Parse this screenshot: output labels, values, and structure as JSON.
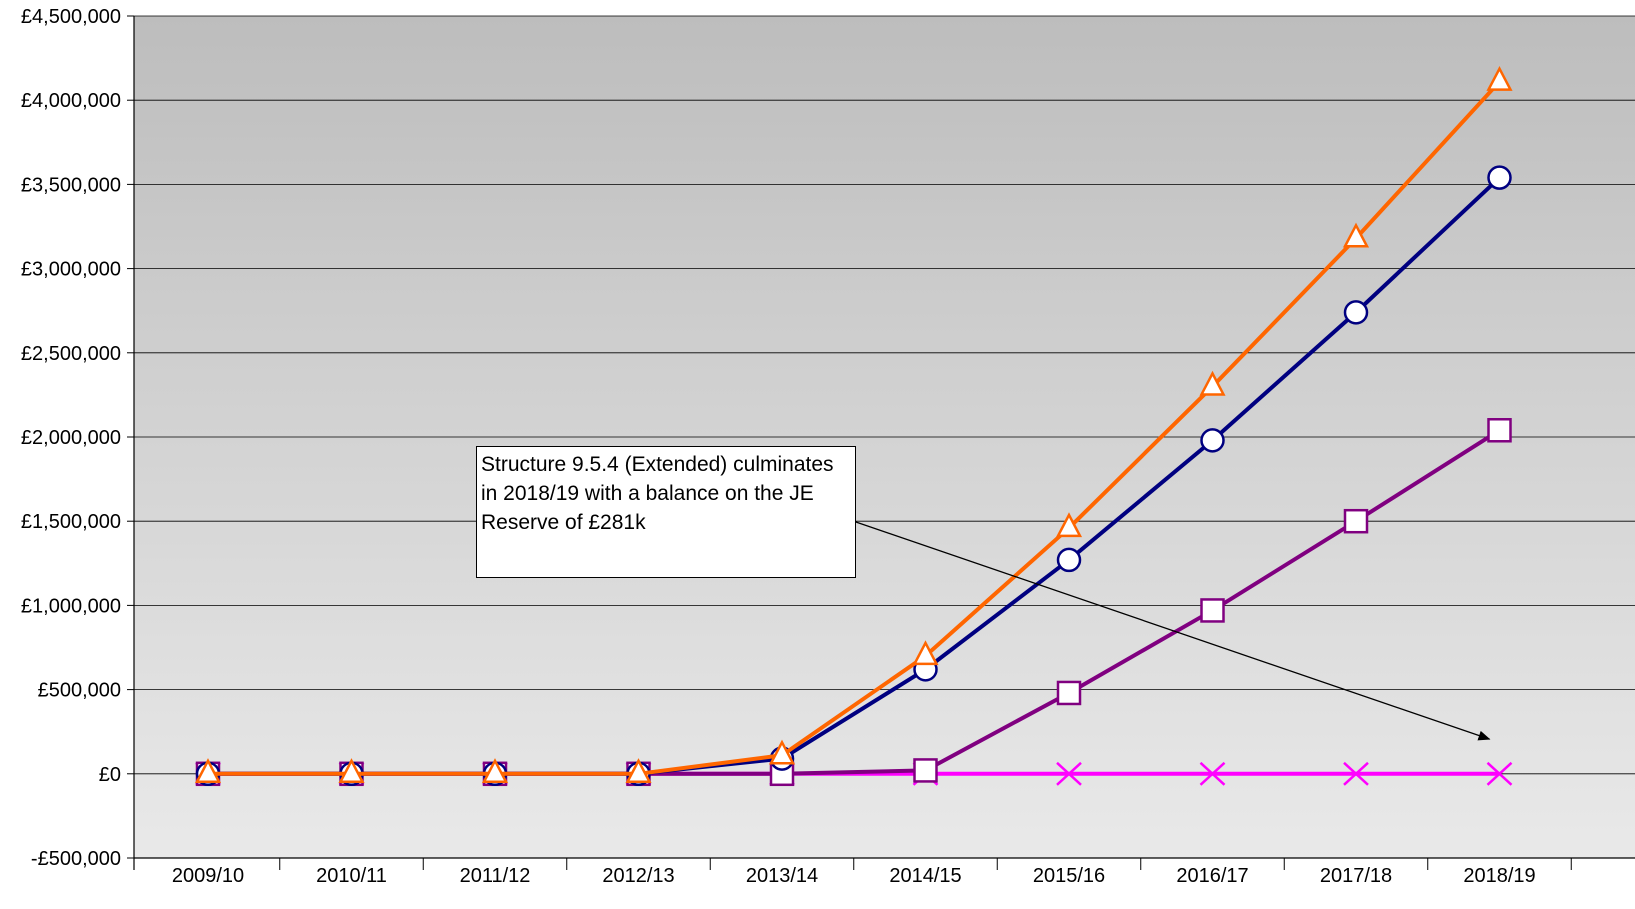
{
  "chart_data": {
    "type": "line",
    "categories": [
      "2009/10",
      "2010/11",
      "2011/12",
      "2012/13",
      "2013/14",
      "2014/15",
      "2015/16",
      "2016/17",
      "2017/18",
      "2018/19"
    ],
    "ylim": [
      -500000,
      4500000
    ],
    "yticks": [
      -500000,
      0,
      500000,
      1000000,
      1500000,
      2000000,
      2500000,
      3000000,
      3500000,
      4000000,
      4500000
    ],
    "ytick_labels": [
      "-£500,000",
      "£0",
      "£500,000",
      "£1,000,000",
      "£1,500,000",
      "£2,000,000",
      "£2,500,000",
      "£3,000,000",
      "£3,500,000",
      "£4,000,000",
      "£4,500,000"
    ],
    "grid": true,
    "legend": "none",
    "series": [
      {
        "marker": "x",
        "color": "#ff00ff",
        "values": [
          0,
          0,
          0,
          0,
          0,
          0,
          0,
          0,
          0,
          0
        ]
      },
      {
        "marker": "square",
        "color": "#800080",
        "values": [
          0,
          0,
          0,
          0,
          0,
          20000,
          480000,
          970000,
          1500000,
          2040000
        ]
      },
      {
        "marker": "circle",
        "color": "#000080",
        "values": [
          0,
          0,
          0,
          0,
          90000,
          620000,
          1270000,
          1980000,
          2740000,
          3540000
        ]
      },
      {
        "marker": "triangle",
        "color": "#ff6600",
        "values": [
          0,
          0,
          0,
          0,
          110000,
          700000,
          1460000,
          2300000,
          3180000,
          4110000
        ]
      }
    ],
    "annotation": {
      "text": "Structure 9.5.4 (Extended) culminates in 2018/19 with a balance on the JE Reserve of £281k",
      "arrow_to": {
        "category": "2018/19",
        "value": 170000
      }
    }
  }
}
